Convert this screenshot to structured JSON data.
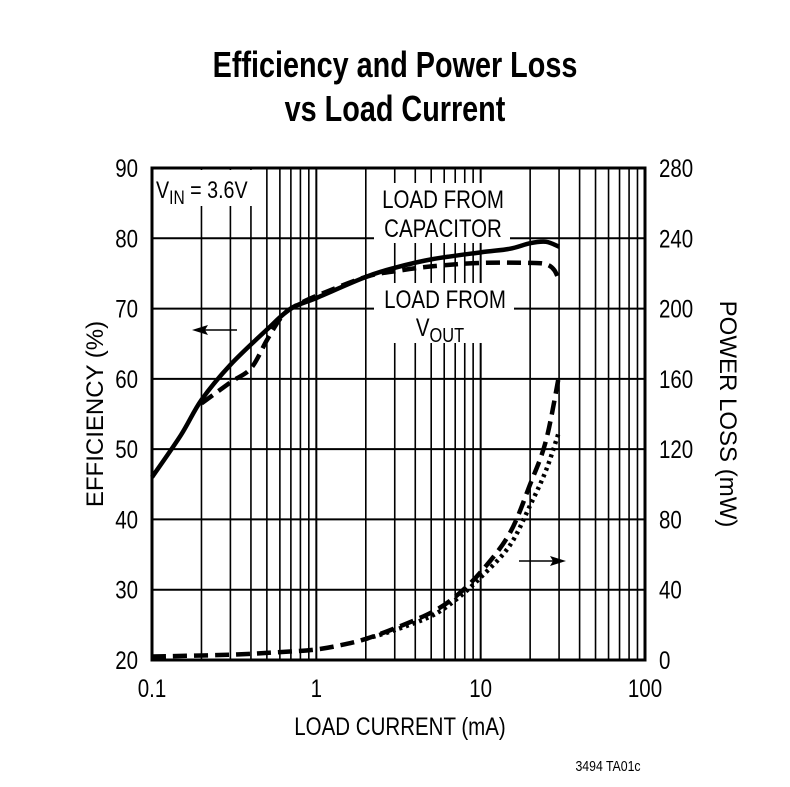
{
  "chart_data": {
    "type": "line",
    "title": [
      "Efficiency and Power Loss",
      "vs Load Current"
    ],
    "xlabel": "LOAD CURRENT (mA)",
    "ylabel_left": "EFFICIENCY (%)",
    "ylabel_right": "POWER LOSS (mW)",
    "x_scale": "log",
    "xlim": [
      0.1,
      100
    ],
    "ylim_left": [
      20,
      90
    ],
    "ylim_right": [
      0,
      280
    ],
    "x_ticks": [
      "0.1",
      "1",
      "10",
      "100"
    ],
    "y_ticks_left": [
      "20",
      "30",
      "40",
      "50",
      "60",
      "70",
      "80",
      "90"
    ],
    "y_ticks_right": [
      "0",
      "40",
      "80",
      "120",
      "160",
      "200",
      "240",
      "280"
    ],
    "grid": true,
    "condition_label": {
      "main": "V",
      "sub": "IN",
      "rest": " = 3.6V"
    },
    "annotations": {
      "capacitor": [
        "LOAD FROM",
        "CAPACITOR"
      ],
      "vout": {
        "line1": "LOAD FROM",
        "main": "V",
        "sub": "OUT"
      }
    },
    "footer": "3494 TA01c",
    "series": [
      {
        "axis": "left",
        "style": "solid",
        "x": [
          0.1,
          0.15,
          0.2,
          0.3,
          0.5,
          0.7,
          1,
          2,
          3,
          5,
          10,
          15,
          20,
          25,
          30
        ],
        "y": [
          46,
          52,
          57,
          62,
          67,
          70,
          71.5,
          74.5,
          75.8,
          77,
          78,
          78.5,
          79.3,
          79.5,
          78.8
        ]
      },
      {
        "axis": "left",
        "style": "dashed",
        "x": [
          0.2,
          0.3,
          0.4,
          0.5,
          0.6,
          0.7,
          1,
          2,
          3,
          5,
          10,
          20,
          25,
          28,
          30
        ],
        "y": [
          56.5,
          59.5,
          61.5,
          65.5,
          68.5,
          70,
          71.8,
          74.5,
          75.3,
          76,
          76.5,
          76.5,
          76.3,
          75.5,
          74
        ]
      },
      {
        "axis": "right",
        "style": "dashed",
        "x": [
          0.1,
          0.3,
          0.6,
          1,
          1.5,
          2,
          3,
          5,
          7,
          10,
          15,
          20,
          25,
          30
        ],
        "y": [
          2,
          3,
          4.5,
          6,
          9,
          12,
          18,
          27,
          36,
          50,
          72,
          100,
          125,
          162
        ]
      },
      {
        "axis": "right",
        "style": "dotted",
        "x": [
          2,
          3,
          5,
          7,
          10,
          15,
          20,
          25,
          30
        ],
        "y": [
          12,
          17,
          25,
          34,
          47,
          65,
          88,
          108,
          130
        ]
      }
    ]
  }
}
